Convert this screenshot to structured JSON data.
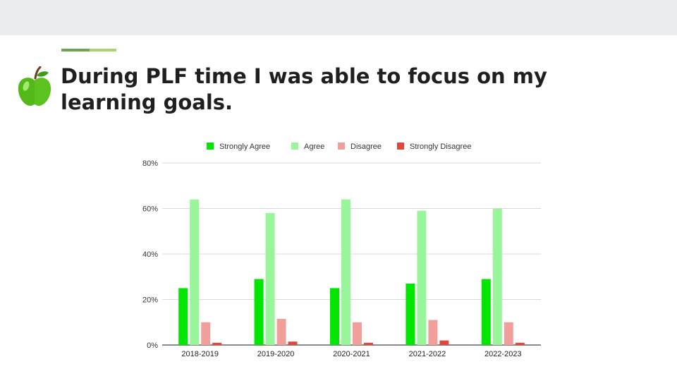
{
  "slide": {
    "title": "During PLF time I was able to focus on my learning goals.",
    "icon": "green-apple-icon",
    "colors": {
      "band": "#e8ecec",
      "accent_dark": "#6aa84f",
      "accent_light": "#a9d46f",
      "title": "#1f1f1f"
    }
  },
  "chart_data": {
    "type": "bar",
    "categories": [
      "2018-2019",
      "2019-2020",
      "2020-2021",
      "2021-2022",
      "2022-2023"
    ],
    "series": [
      {
        "name": "Strongly Agree",
        "color": "#00e600",
        "values": [
          25,
          29,
          25,
          27,
          29
        ]
      },
      {
        "name": "Agree",
        "color": "#99f59a",
        "values": [
          64,
          58,
          64,
          59,
          60
        ]
      },
      {
        "name": "Disagree",
        "color": "#f19f9b",
        "values": [
          10,
          11.5,
          10,
          11,
          10
        ]
      },
      {
        "name": "Strongly Disagree",
        "color": "#e0463c",
        "values": [
          1,
          1.5,
          1,
          2,
          1
        ]
      }
    ],
    "ylim": [
      0,
      80
    ],
    "yticks": [
      0,
      20,
      40,
      60,
      80
    ],
    "ytick_labels": [
      "0%",
      "20%",
      "40%",
      "60%",
      "80%"
    ],
    "grid": true,
    "legend": "top-center"
  }
}
